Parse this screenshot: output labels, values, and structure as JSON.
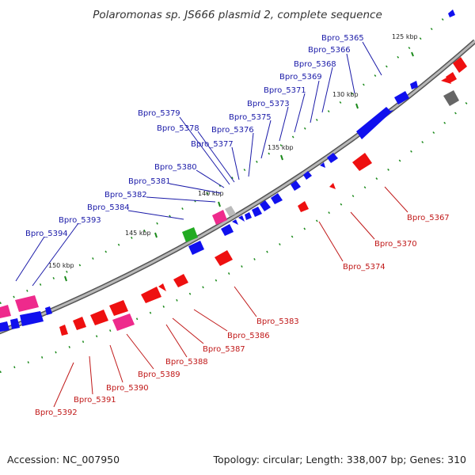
{
  "title": "Polaromonas sp. JS666 plasmid 2, complete sequence",
  "footer": {
    "accession": "Accession: NC_007950",
    "summary": "Topology: circular; Length: 338,007 bp; Genes: 310"
  },
  "colors": {
    "forward": "#1010ee",
    "reverse": "#ee1010",
    "pink": "#ee2a8c",
    "green": "#22aa22",
    "gray": "#888888",
    "backbone": "#888888",
    "fwd_label": "#1a1aa8",
    "rev_label": "#c01818",
    "tick": "#1b8a1b"
  },
  "ticks": [
    "125 kbp",
    "130 kbp",
    "135 kbp",
    "140 kbp",
    "145 kbp",
    "150 kbp"
  ],
  "forward_labels": [
    "Bpro_5365",
    "Bpro_5366",
    "Bpro_5368",
    "Bpro_5369",
    "Bpro_5371",
    "Bpro_5373",
    "Bpro_5375",
    "Bpro_5376",
    "Bpro_5377",
    "Bpro_5378",
    "Bpro_5379",
    "Bpro_5380",
    "Bpro_5381",
    "Bpro_5382",
    "Bpro_5384",
    "Bpro_5393",
    "Bpro_5394"
  ],
  "reverse_labels": [
    "Bpro_5367",
    "Bpro_5370",
    "Bpro_5374",
    "Bpro_5383",
    "Bpro_5386",
    "Bpro_5387",
    "Bpro_5388",
    "Bpro_5389",
    "Bpro_5390",
    "Bpro_5391",
    "Bpro_5392"
  ]
}
